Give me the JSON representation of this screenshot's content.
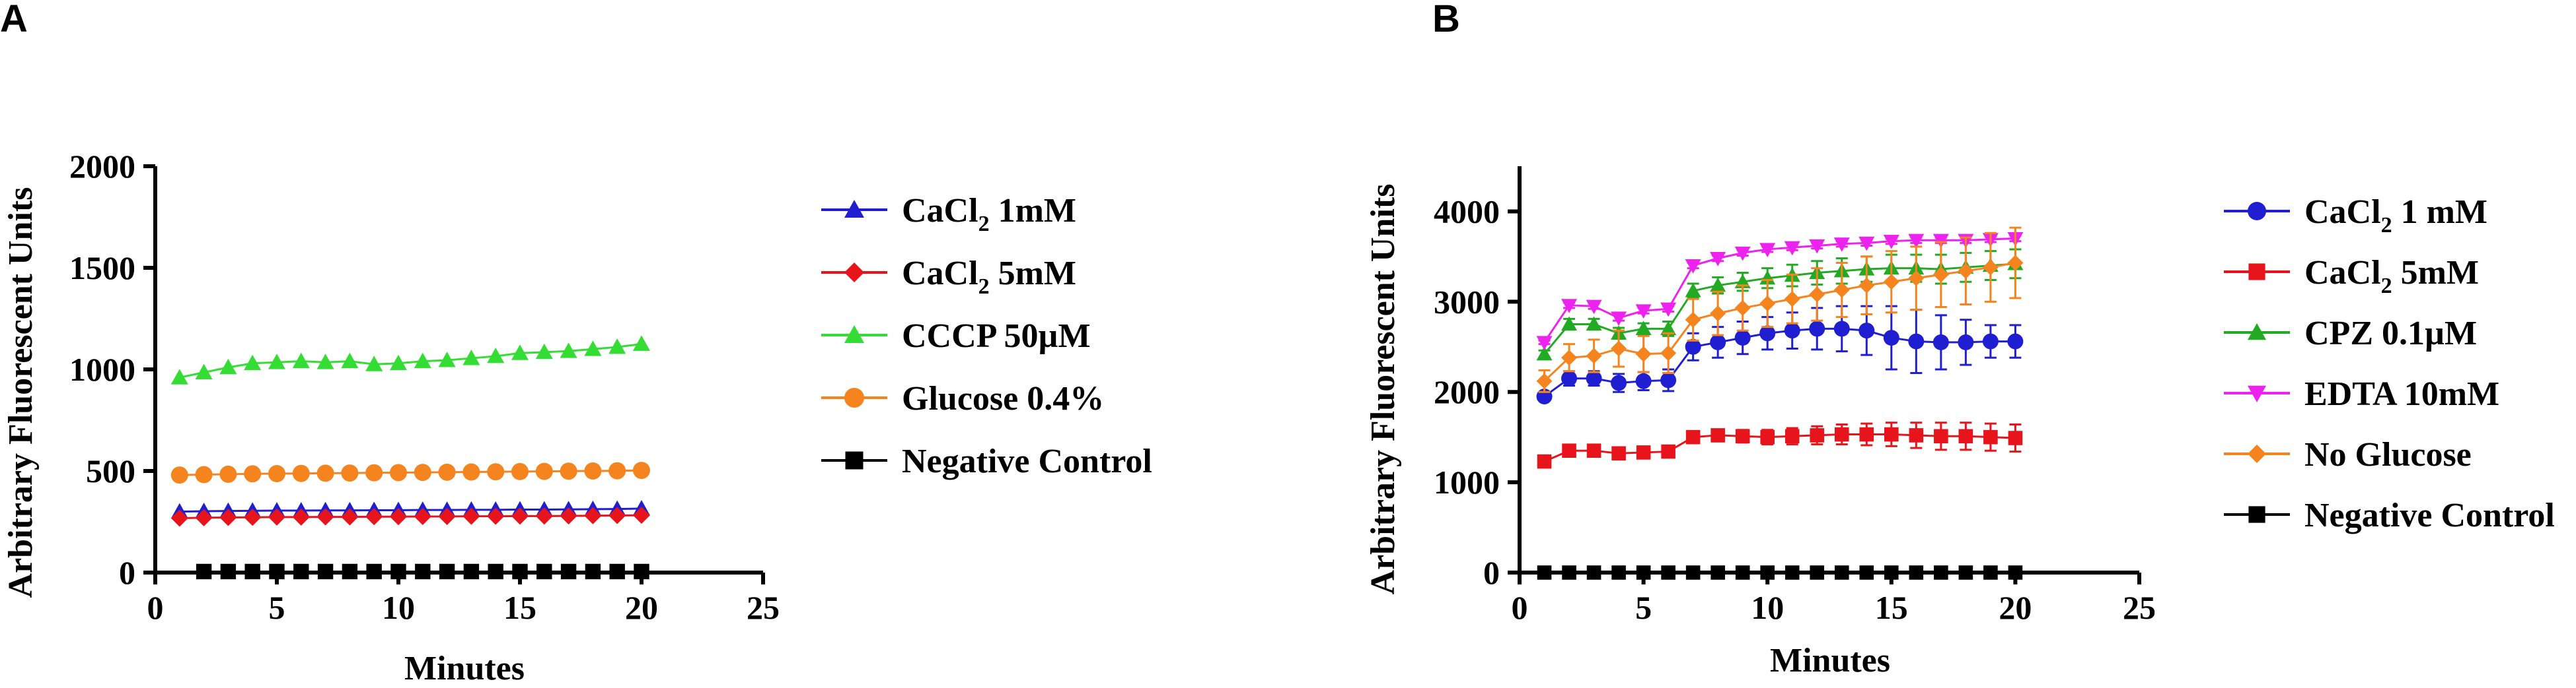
{
  "chart_data": [
    {
      "panel": "A",
      "type": "line",
      "xlabel": "Minutes",
      "ylabel": "Arbitrary Fluorescent Units",
      "xlim": [
        0,
        25
      ],
      "ylim": [
        0,
        2000
      ],
      "xticks": [
        0,
        5,
        10,
        15,
        20,
        25
      ],
      "yticks": [
        0,
        500,
        1000,
        1500,
        2000
      ],
      "series": [
        {
          "name": "CaCl2 1mM",
          "label_main": "CaCl",
          "label_sub": "2",
          "label_rest": " 1mM",
          "color": "#1f1fd1",
          "marker": "triangle",
          "x": [
            1,
            2,
            3,
            4,
            5,
            6,
            7,
            8,
            9,
            10,
            11,
            12,
            13,
            14,
            15,
            16,
            17,
            18,
            19,
            20
          ],
          "y": [
            300,
            302,
            303,
            304,
            305,
            305,
            306,
            306,
            307,
            307,
            308,
            308,
            309,
            309,
            310,
            310,
            311,
            312,
            313,
            315
          ]
        },
        {
          "name": "CaCl2 5mM",
          "label_main": "CaCl",
          "label_sub": "2",
          "label_rest": " 5mM",
          "color": "#e8141c",
          "marker": "diamond",
          "x": [
            1,
            2,
            3,
            4,
            5,
            6,
            7,
            8,
            9,
            10,
            11,
            12,
            13,
            14,
            15,
            16,
            17,
            18,
            19,
            20
          ],
          "y": [
            268,
            270,
            271,
            272,
            273,
            273,
            274,
            274,
            275,
            275,
            276,
            276,
            277,
            277,
            278,
            278,
            279,
            280,
            281,
            282
          ]
        },
        {
          "name": "CCCP 50µM",
          "label_main": "CCCP 50µM",
          "label_sub": "",
          "label_rest": "",
          "color": "#33dd33",
          "marker": "triangle",
          "x": [
            1,
            2,
            3,
            4,
            5,
            6,
            7,
            8,
            9,
            10,
            11,
            12,
            13,
            14,
            15,
            16,
            17,
            18,
            19,
            20
          ],
          "y": [
            960,
            985,
            1010,
            1030,
            1035,
            1040,
            1035,
            1040,
            1025,
            1030,
            1040,
            1045,
            1055,
            1065,
            1080,
            1085,
            1090,
            1100,
            1110,
            1125
          ]
        },
        {
          "name": "Glucose 0.4%",
          "label_main": "Glucose 0.4%",
          "label_sub": "",
          "label_rest": "",
          "color": "#f5841f",
          "marker": "circle",
          "x": [
            1,
            2,
            3,
            4,
            5,
            6,
            7,
            8,
            9,
            10,
            11,
            12,
            13,
            14,
            15,
            16,
            17,
            18,
            19,
            20
          ],
          "y": [
            480,
            482,
            484,
            486,
            487,
            488,
            489,
            490,
            491,
            492,
            493,
            494,
            495,
            496,
            497,
            498,
            499,
            500,
            501,
            503
          ]
        },
        {
          "name": "Negative Control",
          "label_main": "Negative Control",
          "label_sub": "",
          "label_rest": "",
          "color": "#000000",
          "marker": "square",
          "x": [
            2,
            3,
            4,
            5,
            6,
            7,
            8,
            9,
            10,
            11,
            12,
            13,
            14,
            15,
            16,
            17,
            18,
            19,
            20
          ],
          "y": [
            5,
            5,
            5,
            5,
            5,
            5,
            5,
            5,
            5,
            5,
            5,
            5,
            5,
            5,
            5,
            5,
            5,
            5,
            5
          ]
        }
      ]
    },
    {
      "panel": "B",
      "type": "line",
      "xlabel": "Minutes",
      "ylabel": "Arbitrary Fluorescent Units",
      "xlim": [
        0,
        25
      ],
      "ylim": [
        0,
        4500
      ],
      "xticks": [
        0,
        5,
        10,
        15,
        20,
        25
      ],
      "yticks": [
        0,
        1000,
        2000,
        3000,
        4000
      ],
      "series": [
        {
          "name": "CaCl2 1 mM",
          "label_main": "CaCl",
          "label_sub": "2",
          "label_rest": " 1 mM",
          "color": "#1f1fd1",
          "marker": "circle",
          "x": [
            1,
            2,
            3,
            4,
            5,
            6,
            7,
            8,
            9,
            10,
            11,
            12,
            13,
            14,
            15,
            16,
            17,
            18,
            19,
            20
          ],
          "y": [
            1950,
            2150,
            2150,
            2100,
            2120,
            2130,
            2500,
            2550,
            2600,
            2650,
            2680,
            2700,
            2700,
            2680,
            2600,
            2560,
            2550,
            2550,
            2560,
            2560
          ],
          "err": [
            40,
            80,
            80,
            100,
            100,
            120,
            150,
            170,
            180,
            180,
            200,
            230,
            250,
            270,
            350,
            350,
            300,
            250,
            180,
            180
          ]
        },
        {
          "name": "CaCl2 5mM",
          "label_main": "CaCl",
          "label_sub": "2",
          "label_rest": " 5mM",
          "color": "#e8141c",
          "marker": "square",
          "x": [
            1,
            2,
            3,
            4,
            5,
            6,
            7,
            8,
            9,
            10,
            11,
            12,
            13,
            14,
            15,
            16,
            17,
            18,
            19,
            20
          ],
          "y": [
            1230,
            1350,
            1350,
            1320,
            1330,
            1340,
            1500,
            1520,
            1510,
            1500,
            1510,
            1520,
            1530,
            1530,
            1530,
            1520,
            1510,
            1510,
            1500,
            1490
          ],
          "err": [
            30,
            40,
            40,
            40,
            40,
            40,
            50,
            60,
            70,
            80,
            90,
            100,
            110,
            120,
            130,
            140,
            150,
            150,
            150,
            150
          ]
        },
        {
          "name": "CPZ 0.1µM",
          "label_main": "CPZ 0.1µM",
          "label_sub": "",
          "label_rest": "",
          "color": "#22aa22",
          "marker": "triangle",
          "x": [
            1,
            2,
            3,
            4,
            5,
            6,
            7,
            8,
            9,
            10,
            11,
            12,
            13,
            14,
            15,
            16,
            17,
            18,
            19,
            20
          ],
          "y": [
            2420,
            2750,
            2750,
            2650,
            2700,
            2700,
            3120,
            3180,
            3220,
            3260,
            3290,
            3320,
            3340,
            3360,
            3370,
            3370,
            3360,
            3380,
            3400,
            3420
          ],
          "err": [
            40,
            60,
            60,
            60,
            60,
            80,
            80,
            90,
            100,
            110,
            120,
            130,
            140,
            140,
            150,
            150,
            160,
            160,
            160,
            160
          ]
        },
        {
          "name": "EDTA 10mM",
          "label_main": "EDTA 10mM",
          "label_sub": "",
          "label_rest": "",
          "color": "#ee22ee",
          "marker": "triangle-down",
          "x": [
            1,
            2,
            3,
            4,
            5,
            6,
            7,
            8,
            9,
            10,
            11,
            12,
            13,
            14,
            15,
            16,
            17,
            18,
            19,
            20
          ],
          "y": [
            2550,
            2960,
            2950,
            2820,
            2900,
            2920,
            3400,
            3480,
            3540,
            3580,
            3600,
            3620,
            3640,
            3650,
            3670,
            3680,
            3680,
            3680,
            3690,
            3700
          ],
          "err": [
            20,
            30,
            30,
            30,
            30,
            30,
            30,
            30,
            30,
            30,
            30,
            30,
            30,
            30,
            30,
            30,
            30,
            30,
            30,
            30
          ]
        },
        {
          "name": "No Glucose",
          "label_main": "No Glucose",
          "label_sub": "",
          "label_rest": "",
          "color": "#f5841f",
          "marker": "diamond",
          "x": [
            1,
            2,
            3,
            4,
            5,
            6,
            7,
            8,
            9,
            10,
            11,
            12,
            13,
            14,
            15,
            16,
            17,
            18,
            19,
            20
          ],
          "y": [
            2120,
            2380,
            2400,
            2480,
            2420,
            2430,
            2800,
            2870,
            2930,
            2980,
            3030,
            3080,
            3130,
            3180,
            3220,
            3260,
            3300,
            3340,
            3380,
            3430
          ],
          "err": [
            120,
            150,
            180,
            200,
            200,
            220,
            230,
            240,
            250,
            260,
            270,
            290,
            300,
            320,
            340,
            350,
            360,
            370,
            380,
            390
          ]
        },
        {
          "name": "Negative Control",
          "label_main": "Negative Control",
          "label_sub": "",
          "label_rest": "",
          "color": "#000000",
          "marker": "square",
          "x": [
            1,
            2,
            3,
            4,
            5,
            6,
            7,
            8,
            9,
            10,
            11,
            12,
            13,
            14,
            15,
            16,
            17,
            18,
            19,
            20
          ],
          "y": [
            0,
            0,
            0,
            0,
            0,
            0,
            0,
            0,
            0,
            0,
            0,
            0,
            0,
            0,
            0,
            0,
            0,
            0,
            0,
            0
          ]
        }
      ]
    }
  ]
}
